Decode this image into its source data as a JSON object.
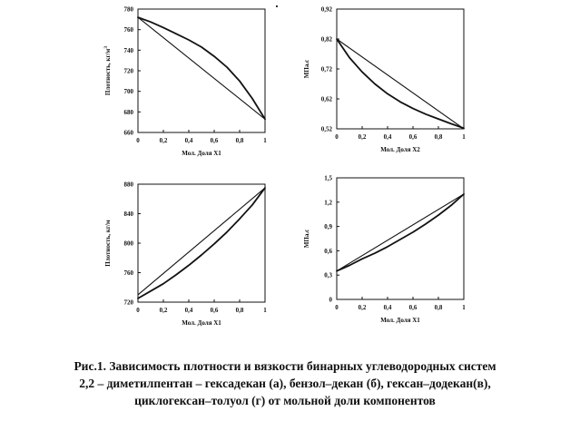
{
  "chart_data": [
    {
      "id": "a",
      "type": "line",
      "xlabel": "Мол. Доля Х1",
      "ylabel": "Плотность, кг/м",
      "ylabel_superscript": "3",
      "ylim": [
        660,
        780
      ],
      "xlim": [
        0,
        1
      ],
      "xticks": [
        0,
        0.2,
        0.4,
        0.6,
        0.8,
        1
      ],
      "xtick_labels": [
        "0",
        "0,2",
        "0,4",
        "0,6",
        "0,8",
        "1"
      ],
      "yticks": [
        660,
        680,
        700,
        720,
        740,
        760,
        780
      ],
      "ytick_labels": [
        "660",
        "680",
        "700",
        "720",
        "740",
        "760",
        "780"
      ],
      "series": [
        {
          "x": [
            0,
            1
          ],
          "y": [
            772,
            673
          ]
        },
        {
          "x": [
            0,
            0.1,
            0.2,
            0.3,
            0.4,
            0.5,
            0.6,
            0.7,
            0.8,
            0.9,
            1
          ],
          "y": [
            772,
            767.5,
            762,
            756,
            750,
            743,
            734,
            723.5,
            710,
            693,
            673
          ]
        }
      ]
    },
    {
      "id": "b",
      "type": "line",
      "xlabel": "Мол. Доля Х2",
      "ylabel": "МПа.с",
      "ylim": [
        0.52,
        0.92
      ],
      "xlim": [
        0,
        1
      ],
      "xticks": [
        0,
        0.2,
        0.4,
        0.6,
        0.8,
        1
      ],
      "xtick_labels": [
        "0",
        "0,2",
        "0,4",
        "0,6",
        "0,8",
        "1"
      ],
      "yticks": [
        0.52,
        0.62,
        0.72,
        0.82,
        0.92
      ],
      "ytick_labels": [
        "0,52",
        "0,62",
        "0,72",
        "0,82",
        "0,92"
      ],
      "series": [
        {
          "x": [
            0,
            1
          ],
          "y": [
            0.82,
            0.52
          ]
        },
        {
          "x": [
            0,
            0.1,
            0.2,
            0.3,
            0.4,
            0.5,
            0.6,
            0.7,
            0.8,
            0.9,
            1
          ],
          "y": [
            0.82,
            0.758,
            0.71,
            0.67,
            0.637,
            0.61,
            0.588,
            0.569,
            0.553,
            0.537,
            0.522
          ]
        }
      ]
    },
    {
      "id": "c",
      "type": "line",
      "xlabel": "Мол. Доля Х1",
      "ylabel": "Плотность, кг/м",
      "ylim": [
        720,
        880
      ],
      "xlim": [
        0,
        1
      ],
      "xticks": [
        0,
        0.2,
        0.4,
        0.6,
        0.8,
        1
      ],
      "xtick_labels": [
        "0",
        "0,2",
        "0,4",
        "0,6",
        "0,8",
        "1"
      ],
      "yticks": [
        720,
        760,
        800,
        840,
        880
      ],
      "ytick_labels": [
        "720",
        "760",
        "800",
        "840",
        "880"
      ],
      "series": [
        {
          "x": [
            0,
            1
          ],
          "y": [
            730,
            875
          ]
        },
        {
          "x": [
            0,
            0.1,
            0.2,
            0.3,
            0.4,
            0.5,
            0.6,
            0.7,
            0.8,
            0.9,
            1
          ],
          "y": [
            725,
            735,
            745,
            757,
            770,
            784,
            799,
            815,
            833,
            852,
            875
          ]
        }
      ]
    },
    {
      "id": "d",
      "type": "line",
      "xlabel": "Мол. Доля Х1",
      "ylabel": "МПа.с",
      "ylim": [
        0,
        1.5
      ],
      "xlim": [
        0,
        1
      ],
      "xticks": [
        0,
        0.2,
        0.4,
        0.6,
        0.8,
        1
      ],
      "xtick_labels": [
        "0",
        "0,2",
        "0,4",
        "0,6",
        "0,8",
        "1"
      ],
      "yticks": [
        0,
        0.3,
        0.6,
        0.9,
        1.2,
        1.5
      ],
      "ytick_labels": [
        "0",
        "0,3",
        "0,6",
        "0,9",
        "1,2",
        "1,5"
      ],
      "series": [
        {
          "x": [
            0,
            1
          ],
          "y": [
            0.35,
            1.3
          ]
        },
        {
          "x": [
            0,
            0.1,
            0.2,
            0.3,
            0.4,
            0.5,
            0.6,
            0.7,
            0.8,
            0.9,
            1
          ],
          "y": [
            0.35,
            0.42,
            0.5,
            0.57,
            0.65,
            0.74,
            0.83,
            0.93,
            1.04,
            1.16,
            1.3
          ]
        }
      ]
    }
  ],
  "caption": {
    "line1": "Рис.1. Зависимость плотности и вязкости бинарных углеводородных систем",
    "line2": "2,2 – диметилпентан – гексадекан (а), бензол–декан (б), гексан–додекан(в),",
    "line3": "циклогексан–толуол (г) от мольной доли компонентов"
  }
}
